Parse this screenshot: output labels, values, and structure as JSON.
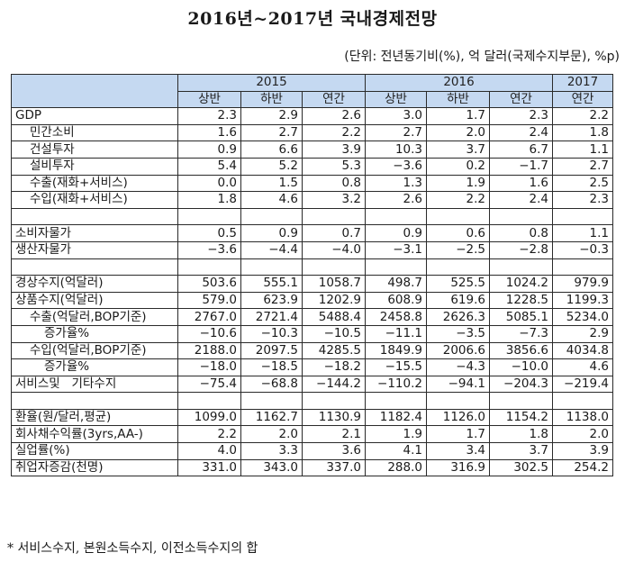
{
  "title": "2016년~2017년 국내경제전망",
  "unit_note": "(단위: 전년동기비(%), 억 달러(국제수지부문), %p)",
  "header": {
    "years": [
      {
        "label": "2015",
        "span": 3
      },
      {
        "label": "2016",
        "span": 3
      },
      {
        "label": "2017",
        "span": 1
      }
    ],
    "periods": [
      "상반",
      "하반",
      "연간",
      "상반",
      "하반",
      "연간",
      "연간"
    ]
  },
  "rows": [
    {
      "label": "GDP",
      "indent": 0,
      "values": [
        "2.3",
        "2.9",
        "2.6",
        "3.0",
        "1.7",
        "2.3",
        "2.2"
      ]
    },
    {
      "label": "민간소비",
      "indent": 1,
      "values": [
        "1.6",
        "2.7",
        "2.2",
        "2.7",
        "2.0",
        "2.4",
        "1.8"
      ]
    },
    {
      "label": "건설투자",
      "indent": 1,
      "values": [
        "0.9",
        "6.6",
        "3.9",
        "10.3",
        "3.7",
        "6.7",
        "1.1"
      ]
    },
    {
      "label": "설비투자",
      "indent": 1,
      "values": [
        "5.4",
        "5.2",
        "5.3",
        "-3.6",
        "0.2",
        "-1.7",
        "2.7"
      ]
    },
    {
      "label": "수출(재화+서비스)",
      "indent": 1,
      "values": [
        "0.0",
        "1.5",
        "0.8",
        "1.3",
        "1.9",
        "1.6",
        "2.5"
      ]
    },
    {
      "label": "수입(재화+서비스)",
      "indent": 1,
      "values": [
        "1.8",
        "4.6",
        "3.2",
        "2.6",
        "2.2",
        "2.4",
        "2.3"
      ]
    },
    {
      "label": "",
      "indent": 0,
      "values": [
        "",
        "",
        "",
        "",
        "",
        "",
        ""
      ]
    },
    {
      "label": "소비자물가",
      "indent": 0,
      "values": [
        "0.5",
        "0.9",
        "0.7",
        "0.9",
        "0.6",
        "0.8",
        "1.1"
      ]
    },
    {
      "label": "생산자물가",
      "indent": 0,
      "values": [
        "-3.6",
        "-4.4",
        "-4.0",
        "-3.1",
        "-2.5",
        "-2.8",
        "-0.3"
      ]
    },
    {
      "label": "",
      "indent": 0,
      "values": [
        "",
        "",
        "",
        "",
        "",
        "",
        ""
      ]
    },
    {
      "label": "경상수지(억달러)",
      "indent": 0,
      "values": [
        "503.6",
        "555.1",
        "1058.7",
        "498.7",
        "525.5",
        "1024.2",
        "979.9"
      ]
    },
    {
      "label": "상품수지(억달러)",
      "indent": 0,
      "values": [
        "579.0",
        "623.9",
        "1202.9",
        "608.9",
        "619.6",
        "1228.5",
        "1199.3"
      ]
    },
    {
      "label": "수출(억달러,BOP기준)",
      "indent": 1,
      "values": [
        "2767.0",
        "2721.4",
        "5488.4",
        "2458.8",
        "2626.3",
        "5085.1",
        "5234.0"
      ]
    },
    {
      "label": "증가율%",
      "indent": 2,
      "values": [
        "-10.6",
        "-10.3",
        "-10.5",
        "-11.1",
        "-3.5",
        "-7.3",
        "2.9"
      ]
    },
    {
      "label": "수입(억달러,BOP기준)",
      "indent": 1,
      "values": [
        "2188.0",
        "2097.5",
        "4285.5",
        "1849.9",
        "2006.6",
        "3856.6",
        "4034.8"
      ]
    },
    {
      "label": "증가율%",
      "indent": 2,
      "values": [
        "-18.0",
        "-18.5",
        "-18.2",
        "-15.5",
        "-4.3",
        "-10.0",
        "4.6"
      ]
    },
    {
      "label": "서비스및   기타수지",
      "indent": 0,
      "values": [
        "-75.4",
        "-68.8",
        "-144.2",
        "-110.2",
        "-94.1",
        "-204.3",
        "-219.4"
      ]
    },
    {
      "label": "",
      "indent": 0,
      "values": [
        "",
        "",
        "",
        "",
        "",
        "",
        ""
      ]
    },
    {
      "label": "환율(원/달러,평균)",
      "indent": 0,
      "values": [
        "1099.0",
        "1162.7",
        "1130.9",
        "1182.4",
        "1126.0",
        "1154.2",
        "1138.0"
      ]
    },
    {
      "label": "회사채수익률(3yrs,AA-)",
      "indent": 0,
      "values": [
        "2.2",
        "2.0",
        "2.1",
        "1.9",
        "1.7",
        "1.8",
        "2.0"
      ]
    },
    {
      "label": "실업률(%)",
      "indent": 0,
      "values": [
        "4.0",
        "3.3",
        "3.6",
        "4.1",
        "3.4",
        "3.7",
        "3.9"
      ]
    },
    {
      "label": "취업자증감(천명)",
      "indent": 0,
      "values": [
        "331.0",
        "343.0",
        "337.0",
        "288.0",
        "316.9",
        "302.5",
        "254.2"
      ]
    }
  ],
  "footnote": "* 서비스수지, 본원소득수지, 이전소득수지의 합",
  "colors": {
    "header_bg": "#c5d9f1",
    "border": "#2a2a2a"
  }
}
